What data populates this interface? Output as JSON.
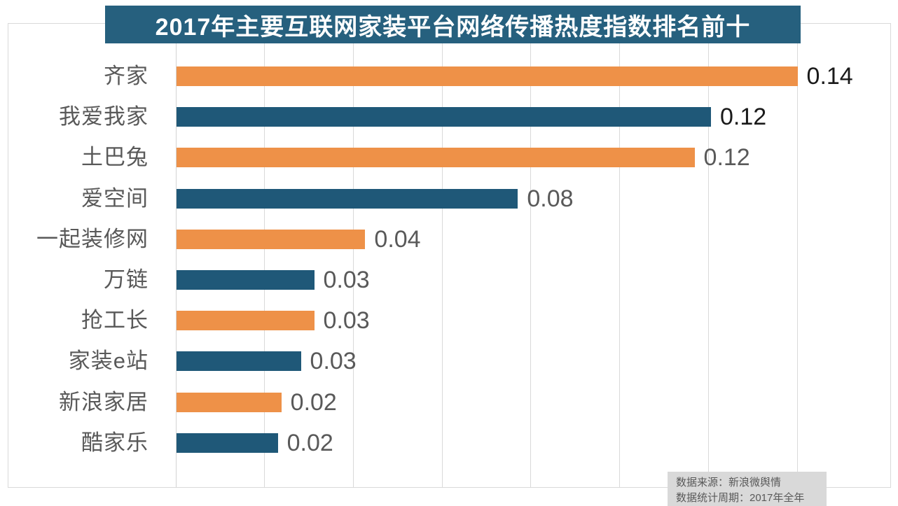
{
  "title": "2017年主要互联网家装平台网络传播热度指数排名前十",
  "source_note": {
    "line1": "数据来源：新浪微舆情",
    "line2": "数据统计周期：2017年全年"
  },
  "colors": {
    "title_bg": "#26607E",
    "title_text": "#FFFFFF",
    "bar_orange": "#EE9148",
    "bar_teal": "#1F5878",
    "grid_line": "#D9D9D9",
    "axis_line": "#D4D4D4",
    "category_text": "#595959",
    "value_text_dark": "#1A1A1A",
    "value_text_gray": "#595959",
    "source_bg": "#D9D9D9",
    "source_text": "#595959"
  },
  "chart_data": {
    "type": "bar",
    "orientation": "horizontal",
    "title": "2017年主要互联网家装平台网络传播热度指数排名前十",
    "categories": [
      "齐家",
      "我爱我家",
      "土巴兔",
      "爱空间",
      "一起装修网",
      "万链",
      "抢工长",
      "家装e站",
      "新浪家居",
      "酷家乐"
    ],
    "values": [
      0.14,
      0.12,
      0.12,
      0.08,
      0.04,
      0.03,
      0.03,
      0.03,
      0.02,
      0.02
    ],
    "value_labels": [
      "0.14",
      "0.12",
      "0.12",
      "0.08",
      "0.04",
      "0.03",
      "0.03",
      "0.03",
      "0.02",
      "0.02"
    ],
    "bar_lengths": [
      0.14,
      0.1205,
      0.1168,
      0.077,
      0.0426,
      0.0311,
      0.0311,
      0.0281,
      0.0237,
      0.0229
    ],
    "value_label_emphasis": [
      true,
      true,
      false,
      false,
      false,
      false,
      false,
      false,
      false,
      false
    ],
    "xlim": [
      0,
      0.1613
    ],
    "x_ticks": [
      0.02,
      0.04,
      0.06,
      0.08,
      0.1,
      0.12,
      0.14
    ],
    "x_tick_labels_visible": false,
    "gridlines": true,
    "legend": false,
    "color_pattern": [
      "orange",
      "teal"
    ],
    "xlabel": "",
    "ylabel": ""
  }
}
